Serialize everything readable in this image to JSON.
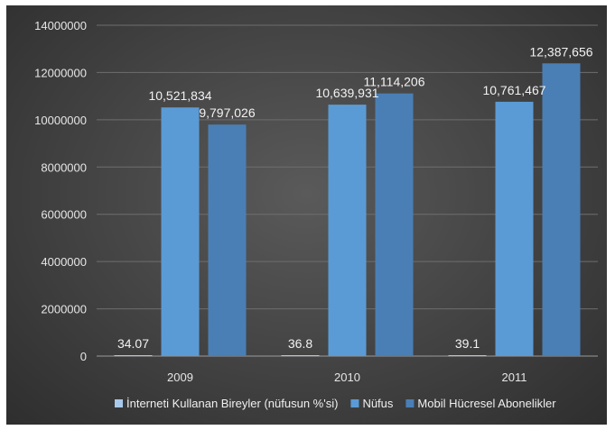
{
  "chart_data": {
    "type": "bar",
    "categories": [
      "2009",
      "2010",
      "2011"
    ],
    "series": [
      {
        "name": "İnterneti Kullanan Bireyler (nüfusun %'si)",
        "values": [
          34.07,
          36.8,
          39.1
        ],
        "labels": [
          "34.07",
          "36.8",
          "39.1"
        ],
        "color": "#a9c9ec"
      },
      {
        "name": "Nüfus",
        "values": [
          10521834,
          10639931,
          10761467
        ],
        "labels": [
          "10,521,834",
          "10,639,931",
          "10,761,467"
        ],
        "color": "#5b9bd5"
      },
      {
        "name": "Mobil Hücresel Abonelikler",
        "values": [
          9797026,
          11114206,
          12387656
        ],
        "labels": [
          "9,797,026",
          "11,114,206",
          "12,387,656"
        ],
        "color": "#4a7fb5"
      }
    ],
    "yticks": [
      "0",
      "2000000",
      "4000000",
      "6000000",
      "8000000",
      "10000000",
      "12000000",
      "14000000"
    ],
    "ylim": [
      0,
      14000000
    ],
    "grid": true,
    "legend": "bottom"
  }
}
